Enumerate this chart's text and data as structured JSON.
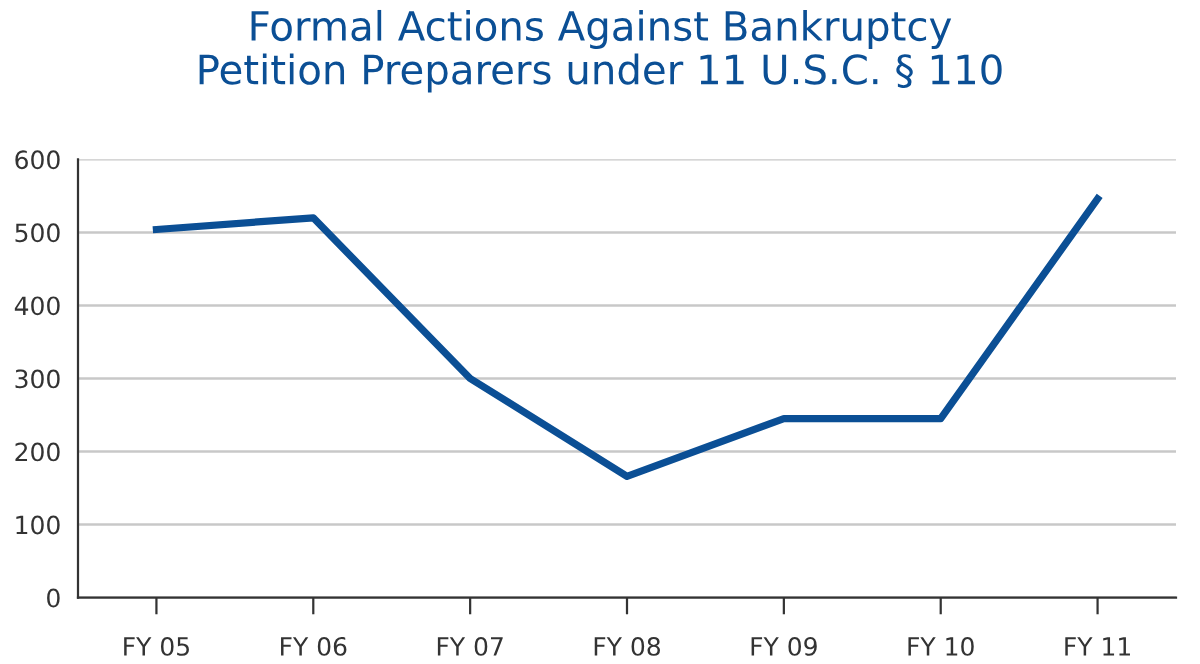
{
  "chart_data": {
    "type": "line",
    "title": "Formal Actions Against Bankruptcy\nPetition Preparers under 11 U.S.C. § 110",
    "categories": [
      "FY 05",
      "FY 06",
      "FY 07",
      "FY 08",
      "FY 09",
      "FY 10",
      "FY 11"
    ],
    "series": [
      {
        "color": "#0b4f95",
        "values": [
          504,
          520,
          300,
          166,
          245,
          245,
          546
        ]
      }
    ],
    "ylim": [
      0,
      600
    ],
    "yticks": [
      0,
      100,
      200,
      300,
      400,
      500,
      600
    ],
    "grid": "y",
    "legend": false,
    "marker": "none",
    "line_style": "solid"
  }
}
